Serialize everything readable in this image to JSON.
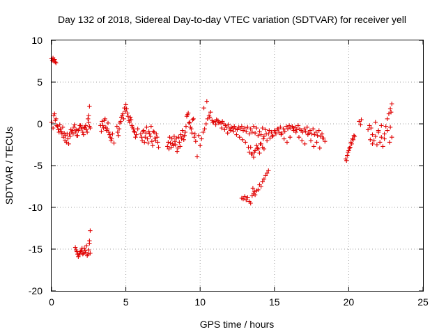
{
  "chart_data": {
    "type": "scatter",
    "title": "Day 132 of 2018, Sidereal Day-to-day VTEC variation (SDTVAR) for receiver yell",
    "xlabel": "GPS time / hours",
    "ylabel": "SDTVAR / TECUs",
    "xlim": [
      0,
      25
    ],
    "ylim": [
      -20,
      10
    ],
    "xticks": [
      0,
      5,
      10,
      15,
      20,
      25
    ],
    "yticks": [
      -20,
      -15,
      -10,
      -5,
      0,
      5,
      10
    ],
    "xtick_labels": [
      "0",
      "5",
      "10",
      "15",
      "20",
      "25"
    ],
    "ytick_labels": [
      "-20",
      "-15",
      "-10",
      "-5",
      "0",
      "5",
      "10"
    ],
    "grid": true,
    "legend": "none",
    "marker": "+",
    "color": "#e00000",
    "series": [
      {
        "name": "SDTVAR",
        "x": [
          0.0,
          0.05,
          0.1,
          0.15,
          0.2,
          0.25,
          0.3,
          0.0,
          0.1,
          0.2,
          0.3,
          0.4,
          0.5,
          0.6,
          0.7,
          0.8,
          0.9,
          1.0,
          1.1,
          1.2,
          1.3,
          1.4,
          1.5,
          1.6,
          1.7,
          1.8,
          1.9,
          2.0,
          2.1,
          2.2,
          2.3,
          2.4,
          2.5,
          2.6,
          0.15,
          0.25,
          0.35,
          0.45,
          0.55,
          0.65,
          0.75,
          0.85,
          0.95,
          1.05,
          1.15,
          1.25,
          1.35,
          1.45,
          1.55,
          1.65,
          1.75,
          1.85,
          1.95,
          2.05,
          2.15,
          2.25,
          2.35,
          2.45,
          2.55,
          2.5,
          2.55,
          1.6,
          1.7,
          1.8,
          1.9,
          2.0,
          2.1,
          2.2,
          2.3,
          2.4,
          2.5,
          2.6,
          2.55,
          2.6,
          1.65,
          1.75,
          1.85,
          1.95,
          2.05,
          2.15,
          2.25,
          2.35,
          2.45,
          2.55,
          3.3,
          3.4,
          3.5,
          3.6,
          3.7,
          3.8,
          3.9,
          4.0,
          4.1,
          4.2,
          3.35,
          3.45,
          3.55,
          3.65,
          3.75,
          3.85,
          3.95,
          4.05,
          4.4,
          4.5,
          4.6,
          4.7,
          4.8,
          4.9,
          5.0,
          5.1,
          5.2,
          5.3,
          5.4,
          5.5,
          5.6,
          5.7,
          5.8,
          4.45,
          4.55,
          4.65,
          4.75,
          4.85,
          4.95,
          5.05,
          5.15,
          5.25,
          5.35,
          5.45,
          5.55,
          5.65,
          6.0,
          6.1,
          6.2,
          6.3,
          6.4,
          6.5,
          6.6,
          6.7,
          6.8,
          6.9,
          7.0,
          7.1,
          7.2,
          6.05,
          6.15,
          6.25,
          6.35,
          6.45,
          6.55,
          6.65,
          6.75,
          6.85,
          6.95,
          7.05,
          7.15,
          7.8,
          7.9,
          8.0,
          8.1,
          8.2,
          8.3,
          8.4,
          8.5,
          8.6,
          8.7,
          8.8,
          8.9,
          9.0,
          9.1,
          9.2,
          9.3,
          9.4,
          9.5,
          9.6,
          9.7,
          9.8,
          7.85,
          7.95,
          8.05,
          8.15,
          8.25,
          8.35,
          8.45,
          8.55,
          8.65,
          8.75,
          8.85,
          8.95,
          9.05,
          9.15,
          9.25,
          9.35,
          9.45,
          9.55,
          9.65,
          9.9,
          10.0,
          10.1,
          10.2,
          10.3,
          10.4,
          10.5,
          10.6,
          10.7,
          10.8,
          10.9,
          11.0,
          11.1,
          11.2,
          11.3,
          11.4,
          11.5,
          11.6,
          11.7,
          11.8,
          11.9,
          12.0,
          12.1,
          12.2,
          12.3,
          12.4,
          12.5,
          12.6,
          12.7,
          12.8,
          12.9,
          13.0,
          13.1,
          13.2,
          13.3,
          13.4,
          13.5,
          13.6,
          13.7,
          13.8,
          13.9,
          14.0,
          14.1,
          14.2,
          14.3,
          14.4,
          14.5,
          14.6,
          14.7,
          14.8,
          14.9,
          15.0,
          15.1,
          15.2,
          15.3,
          15.4,
          15.5,
          15.6,
          15.7,
          15.8,
          15.9,
          16.0,
          16.1,
          16.2,
          16.3,
          16.4,
          16.5,
          16.6,
          16.7,
          16.8,
          16.9,
          17.0,
          17.1,
          17.2,
          17.3,
          17.4,
          17.5,
          17.6,
          17.7,
          17.8,
          17.9,
          18.0,
          18.1,
          18.2,
          18.3,
          18.4,
          10.25,
          10.45,
          10.65,
          10.85,
          11.05,
          11.25,
          11.45,
          11.65,
          11.85,
          12.05,
          12.25,
          12.45,
          12.65,
          12.85,
          13.05,
          13.25,
          13.45,
          13.65,
          13.85,
          14.05,
          14.25,
          14.45,
          14.65,
          14.85,
          15.05,
          15.25,
          15.45,
          15.65,
          15.85,
          16.05,
          16.25,
          16.45,
          16.65,
          16.85,
          17.05,
          17.25,
          17.45,
          17.65,
          17.85,
          18.05,
          18.25,
          13.3,
          13.4,
          13.5,
          13.6,
          13.7,
          13.8,
          13.9,
          14.0,
          14.1,
          14.2,
          14.3,
          12.8,
          12.9,
          13.0,
          13.1,
          13.2,
          13.3,
          13.4,
          13.5,
          13.6,
          13.7,
          13.8,
          13.9,
          14.0,
          14.1,
          14.2,
          14.3,
          14.4,
          14.5,
          14.6,
          13.55,
          13.65,
          19.8,
          19.9,
          20.0,
          20.1,
          20.2,
          20.3,
          20.4,
          19.85,
          19.95,
          20.05,
          20.15,
          20.25,
          20.35,
          20.7,
          20.8,
          20.85,
          21.3,
          21.4,
          21.5,
          21.6,
          21.7,
          21.8,
          21.9,
          22.0,
          22.1,
          22.2,
          22.3,
          22.4,
          22.5,
          22.6,
          22.7,
          22.8,
          22.9,
          21.45,
          21.6,
          21.8,
          22.0,
          22.2,
          22.4,
          22.6,
          22.75,
          22.8,
          22.85,
          22.9
        ],
        "y": [
          7.8,
          7.6,
          7.9,
          7.5,
          7.7,
          7.4,
          7.3,
          0.2,
          -0.5,
          1.2,
          0.6,
          -0.3,
          -1.0,
          -0.6,
          -1.2,
          -1.6,
          -2.0,
          -2.2,
          -1.8,
          -1.2,
          -0.7,
          -0.8,
          -0.4,
          -1.0,
          -1.4,
          -0.8,
          -0.2,
          -0.6,
          -1.0,
          -0.4,
          -0.2,
          -1.0,
          0.2,
          -0.5,
          1.0,
          0.4,
          -0.2,
          -0.7,
          -0.1,
          -0.9,
          -0.4,
          -1.1,
          -1.4,
          -1.2,
          -2.4,
          -1.5,
          -1.0,
          -1.2,
          -0.1,
          -0.7,
          -1.4,
          -0.6,
          -0.2,
          -0.4,
          -1.3,
          -0.5,
          -0.7,
          0.6,
          -0.3,
          1.0,
          2.1,
          -14.8,
          -15.3,
          -15.9,
          -15.5,
          -15.2,
          -15.6,
          -14.9,
          -15.4,
          -15.8,
          -15.1,
          -15.5,
          -14.0,
          -12.8,
          -15.1,
          -15.6,
          -15.7,
          -15.3,
          -14.9,
          -15.5,
          -15.2,
          -14.6,
          -15.6,
          -14.3,
          -0.2,
          0.3,
          -0.5,
          0.6,
          -0.8,
          0.1,
          -1.3,
          -2.0,
          -1.2,
          -2.3,
          -0.9,
          -0.2,
          0.4,
          -0.4,
          -0.6,
          -1.0,
          -1.6,
          -1.8,
          -0.3,
          -1.4,
          0.1,
          0.8,
          1.2,
          1.9,
          2.3,
          1.3,
          0.4,
          0.8,
          -0.2,
          -0.6,
          -1.0,
          -1.3,
          -0.6,
          -1.0,
          -0.6,
          0.3,
          1.0,
          0.6,
          1.5,
          1.8,
          0.9,
          0.2,
          0.5,
          -0.4,
          -0.9,
          -1.6,
          -1.2,
          -2.0,
          -0.8,
          -1.6,
          -0.4,
          -2.3,
          -1.2,
          -0.3,
          -2.6,
          -1.0,
          -2.0,
          -1.6,
          -2.8,
          -1.6,
          -0.9,
          -2.2,
          -1.1,
          -1.8,
          -0.9,
          -1.5,
          -2.1,
          -0.9,
          -1.7,
          -1.2,
          -2.2,
          -2.7,
          -3.0,
          -2.3,
          -1.8,
          -2.6,
          -2.1,
          -1.7,
          -2.9,
          -2.2,
          -1.3,
          -0.8,
          -1.9,
          -1.0,
          0.9,
          1.3,
          0.2,
          -0.6,
          0.5,
          -1.6,
          -2.1,
          -3.9,
          -2.2,
          -1.6,
          -2.8,
          -2.4,
          -1.5,
          -2.5,
          -3.3,
          -1.6,
          -2.7,
          -1.8,
          -1.5,
          -1.4,
          -0.3,
          1.1,
          0.1,
          -0.4,
          -1.1,
          0.6,
          -1.2,
          -1.4,
          -2.6,
          -1.8,
          -1.0,
          -0.6,
          0.0,
          0.6,
          1.0,
          1.4,
          0.4,
          0.2,
          0.3,
          0.5,
          0.4,
          0.2,
          0.1,
          0.3,
          0.0,
          -0.2,
          -0.4,
          -0.1,
          -0.6,
          -0.4,
          -0.5,
          -0.3,
          -0.6,
          -0.7,
          -0.4,
          -0.6,
          -0.3,
          -0.8,
          -0.5,
          -0.9,
          -0.4,
          -1.2,
          -0.6,
          -1.0,
          -0.3,
          -1.1,
          -0.5,
          -1.4,
          -0.9,
          -1.3,
          -0.5,
          -1.5,
          -0.7,
          -2.0,
          -1.2,
          -1.7,
          -1.0,
          -1.4,
          -0.8,
          -1.2,
          -0.6,
          -1.0,
          -0.4,
          -1.1,
          -0.6,
          -0.9,
          -0.3,
          -0.6,
          -0.2,
          -0.5,
          -0.3,
          -0.8,
          -0.4,
          -0.7,
          -0.2,
          -0.6,
          -0.8,
          -1.0,
          -0.6,
          -0.9,
          -0.4,
          -1.1,
          -0.8,
          -1.2,
          -0.6,
          -1.3,
          -1.0,
          -1.4,
          -0.8,
          -1.5,
          -1.2,
          -1.7,
          -2.1,
          1.9,
          2.7,
          0.8,
          0.2,
          -0.1,
          0.1,
          -0.5,
          -0.7,
          -1.1,
          -0.8,
          -0.9,
          -1.3,
          -1.6,
          -1.9,
          -2.2,
          -2.8,
          -3.6,
          -3.4,
          -2.9,
          -2.4,
          -1.8,
          -1.2,
          -0.8,
          -1.5,
          -1.0,
          -0.6,
          -1.3,
          -1.8,
          -2.2,
          -1.6,
          -0.5,
          -1.0,
          -1.6,
          -2.0,
          -2.4,
          -1.3,
          -2.0,
          -2.7,
          -2.2,
          -2.9,
          -1.7,
          -3.4,
          -2.8,
          -3.6,
          -4.0,
          -3.2,
          -2.6,
          -3.0,
          -3.5,
          -2.4,
          -2.8,
          -3.0,
          -8.9,
          -9.0,
          -8.7,
          -9.1,
          -8.8,
          -9.3,
          -9.5,
          -8.6,
          -8.3,
          -8.5,
          -8.0,
          -7.9,
          -7.3,
          -7.5,
          -6.9,
          -6.6,
          -6.2,
          -5.9,
          -5.6,
          -7.7,
          -8.1,
          -4.2,
          -3.8,
          -3.2,
          -2.8,
          -2.4,
          -1.9,
          -1.5,
          -4.4,
          -3.4,
          -2.9,
          -2.2,
          -1.8,
          -1.4,
          0.3,
          -0.1,
          0.5,
          -0.7,
          -0.2,
          -0.5,
          -1.3,
          -2.0,
          -1.5,
          -2.5,
          -0.8,
          -2.2,
          -1.6,
          -2.7,
          -1.2,
          -0.3,
          0.6,
          1.2,
          1.8,
          2.4,
          -1.9,
          -2.4,
          0.2,
          -1.0,
          -0.2,
          -1.8,
          -0.8,
          -2.2,
          -0.4,
          1.4,
          -1.6
        ]
      }
    ]
  }
}
